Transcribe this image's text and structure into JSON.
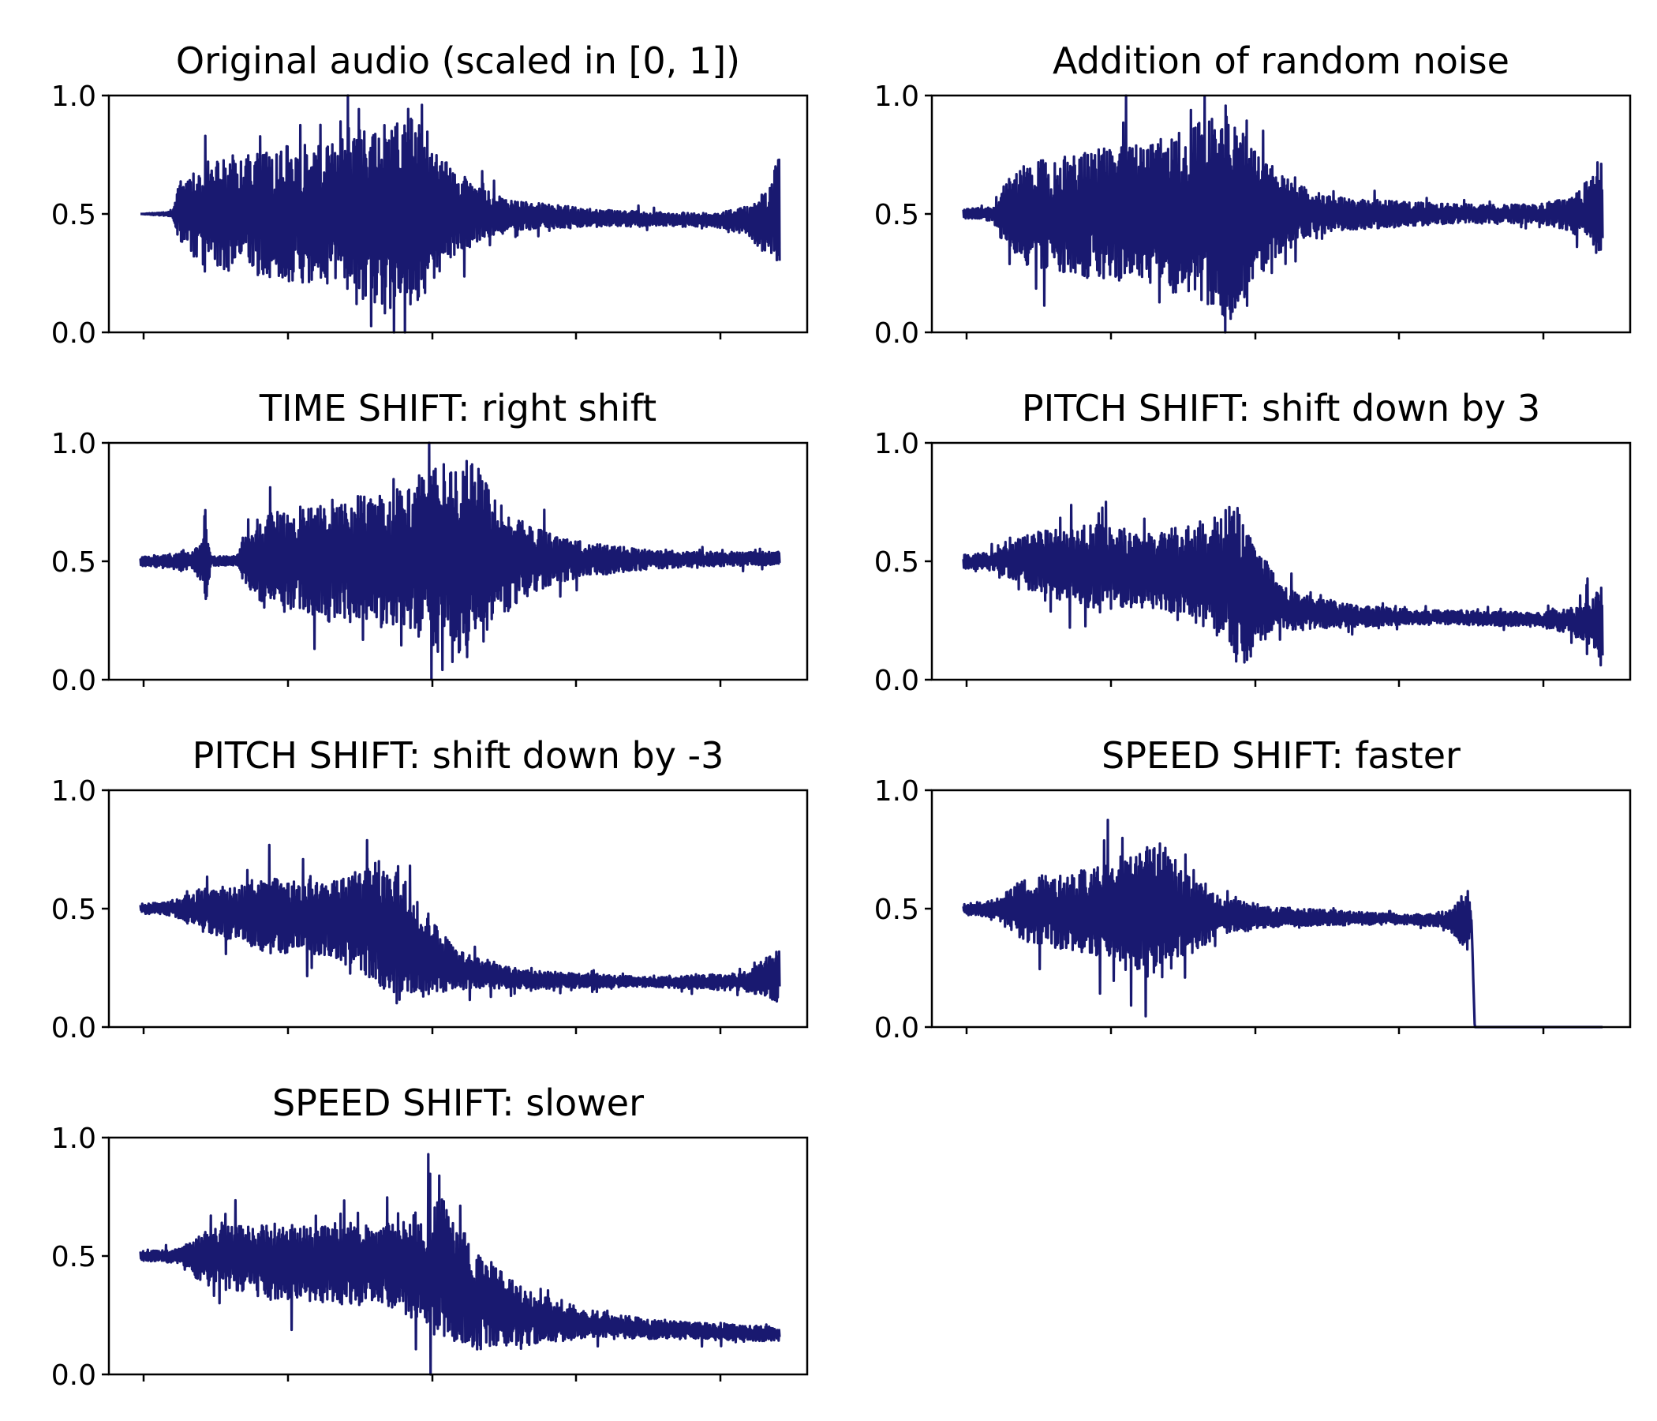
{
  "colors": {
    "waveform": "#191970",
    "axes": "#000000",
    "background": "#ffffff"
  },
  "chart_data": [
    {
      "type": "line",
      "title": "Original audio (scaled in [0, 1])",
      "ylim": [
        0,
        1
      ],
      "yticks": [
        "0.0",
        "0.5",
        "1.0"
      ],
      "xtick_count": 5,
      "xtick_labels_visible": false,
      "envelope": {
        "baseline": [
          [
            0.02,
            0.5
          ],
          [
            0.4,
            0.5
          ],
          [
            0.5,
            0.5
          ],
          [
            0.75,
            0.48
          ],
          [
            0.98,
            0.47
          ],
          [
            0.99,
            0.5
          ]
        ],
        "amplitude": [
          [
            0.0,
            0.0
          ],
          [
            0.05,
            0.01
          ],
          [
            0.06,
            0.12
          ],
          [
            0.1,
            0.22
          ],
          [
            0.2,
            0.28
          ],
          [
            0.3,
            0.3
          ],
          [
            0.38,
            0.4
          ],
          [
            0.42,
            0.45
          ],
          [
            0.45,
            0.3
          ],
          [
            0.5,
            0.16
          ],
          [
            0.55,
            0.09
          ],
          [
            0.6,
            0.06
          ],
          [
            0.7,
            0.04
          ],
          [
            0.8,
            0.03
          ],
          [
            0.9,
            0.03
          ],
          [
            0.95,
            0.06
          ],
          [
            0.98,
            0.15
          ],
          [
            1.0,
            0.25
          ]
        ]
      }
    },
    {
      "type": "line",
      "title": "Addition of random noise",
      "ylim": [
        0,
        1
      ],
      "yticks": [
        "0.0",
        "0.5",
        "1.0"
      ],
      "xtick_count": 5,
      "xtick_labels_visible": false,
      "envelope": {
        "baseline": [
          [
            0.0,
            0.5
          ],
          [
            1.0,
            0.5
          ]
        ],
        "amplitude": [
          [
            0.0,
            0.02
          ],
          [
            0.05,
            0.03
          ],
          [
            0.06,
            0.12
          ],
          [
            0.1,
            0.22
          ],
          [
            0.2,
            0.28
          ],
          [
            0.3,
            0.3
          ],
          [
            0.38,
            0.4
          ],
          [
            0.42,
            0.45
          ],
          [
            0.45,
            0.3
          ],
          [
            0.5,
            0.16
          ],
          [
            0.55,
            0.09
          ],
          [
            0.6,
            0.07
          ],
          [
            0.7,
            0.05
          ],
          [
            0.8,
            0.04
          ],
          [
            0.9,
            0.04
          ],
          [
            0.95,
            0.07
          ],
          [
            0.98,
            0.15
          ],
          [
            1.0,
            0.25
          ]
        ]
      }
    },
    {
      "type": "line",
      "title": "TIME SHIFT: right shift",
      "ylim": [
        0,
        1
      ],
      "yticks": [
        "0.0",
        "0.5",
        "1.0"
      ],
      "xtick_count": 5,
      "xtick_labels_visible": false,
      "envelope": {
        "baseline": [
          [
            0.0,
            0.5
          ],
          [
            1.0,
            0.51
          ]
        ],
        "amplitude": [
          [
            0.0,
            0.02
          ],
          [
            0.08,
            0.04
          ],
          [
            0.1,
            0.1
          ],
          [
            0.1,
            0.26
          ],
          [
            0.11,
            0.02
          ],
          [
            0.15,
            0.02
          ],
          [
            0.16,
            0.1
          ],
          [
            0.2,
            0.2
          ],
          [
            0.3,
            0.26
          ],
          [
            0.4,
            0.3
          ],
          [
            0.48,
            0.42
          ],
          [
            0.52,
            0.45
          ],
          [
            0.55,
            0.28
          ],
          [
            0.6,
            0.16
          ],
          [
            0.65,
            0.1
          ],
          [
            0.7,
            0.07
          ],
          [
            0.8,
            0.04
          ],
          [
            0.9,
            0.03
          ],
          [
            1.0,
            0.03
          ]
        ]
      }
    },
    {
      "type": "line",
      "title": "PITCH SHIFT: shift down by 3",
      "ylim": [
        0,
        1
      ],
      "yticks": [
        "0.0",
        "0.5",
        "1.0"
      ],
      "xtick_count": 5,
      "xtick_labels_visible": false,
      "envelope": {
        "baseline": [
          [
            0.0,
            0.5
          ],
          [
            0.08,
            0.5
          ],
          [
            0.2,
            0.48
          ],
          [
            0.3,
            0.46
          ],
          [
            0.38,
            0.45
          ],
          [
            0.42,
            0.42
          ],
          [
            0.45,
            0.36
          ],
          [
            0.5,
            0.3
          ],
          [
            0.6,
            0.27
          ],
          [
            0.8,
            0.26
          ],
          [
            0.95,
            0.25
          ],
          [
            1.0,
            0.22
          ]
        ],
        "amplitude": [
          [
            0.0,
            0.03
          ],
          [
            0.05,
            0.04
          ],
          [
            0.1,
            0.12
          ],
          [
            0.2,
            0.18
          ],
          [
            0.3,
            0.16
          ],
          [
            0.4,
            0.25
          ],
          [
            0.43,
            0.38
          ],
          [
            0.46,
            0.2
          ],
          [
            0.5,
            0.09
          ],
          [
            0.6,
            0.05
          ],
          [
            0.7,
            0.03
          ],
          [
            0.9,
            0.03
          ],
          [
            0.96,
            0.06
          ],
          [
            1.0,
            0.18
          ]
        ]
      }
    },
    {
      "type": "line",
      "title": "PITCH SHIFT: shift down by -3",
      "ylim": [
        0,
        1
      ],
      "yticks": [
        "0.0",
        "0.5",
        "1.0"
      ],
      "xtick_count": 5,
      "xtick_labels_visible": false,
      "envelope": {
        "baseline": [
          [
            0.0,
            0.5
          ],
          [
            0.08,
            0.5
          ],
          [
            0.2,
            0.47
          ],
          [
            0.3,
            0.46
          ],
          [
            0.38,
            0.44
          ],
          [
            0.42,
            0.36
          ],
          [
            0.45,
            0.3
          ],
          [
            0.5,
            0.24
          ],
          [
            0.6,
            0.2
          ],
          [
            0.8,
            0.19
          ],
          [
            0.95,
            0.19
          ],
          [
            1.0,
            0.22
          ]
        ],
        "amplitude": [
          [
            0.0,
            0.02
          ],
          [
            0.05,
            0.03
          ],
          [
            0.1,
            0.1
          ],
          [
            0.2,
            0.16
          ],
          [
            0.3,
            0.16
          ],
          [
            0.36,
            0.25
          ],
          [
            0.4,
            0.3
          ],
          [
            0.44,
            0.18
          ],
          [
            0.5,
            0.08
          ],
          [
            0.6,
            0.04
          ],
          [
            0.8,
            0.02
          ],
          [
            0.95,
            0.04
          ],
          [
            1.0,
            0.12
          ]
        ]
      }
    },
    {
      "type": "line",
      "title": "SPEED SHIFT: faster",
      "ylim": [
        0,
        1
      ],
      "yticks": [
        "0.0",
        "0.5",
        "1.0"
      ],
      "xtick_count": 5,
      "xtick_labels_visible": false,
      "envelope": {
        "baseline": [
          [
            0.0,
            0.5
          ],
          [
            0.2,
            0.49
          ],
          [
            0.4,
            0.47
          ],
          [
            0.6,
            0.46
          ],
          [
            0.79,
            0.45
          ],
          [
            0.795,
            0.45
          ],
          [
            0.8,
            0.0
          ],
          [
            1.0,
            0.0
          ]
        ],
        "amplitude": [
          [
            0.0,
            0.02
          ],
          [
            0.05,
            0.04
          ],
          [
            0.1,
            0.14
          ],
          [
            0.2,
            0.18
          ],
          [
            0.28,
            0.28
          ],
          [
            0.31,
            0.3
          ],
          [
            0.35,
            0.18
          ],
          [
            0.4,
            0.08
          ],
          [
            0.5,
            0.04
          ],
          [
            0.7,
            0.02
          ],
          [
            0.76,
            0.04
          ],
          [
            0.79,
            0.14
          ],
          [
            0.795,
            0.0
          ],
          [
            1.0,
            0.0
          ]
        ]
      }
    },
    {
      "type": "line",
      "title": "SPEED SHIFT: slower",
      "ylim": [
        0,
        1
      ],
      "yticks": [
        "0.0",
        "0.5",
        "1.0"
      ],
      "xtick_count": 5,
      "xtick_labels_visible": false,
      "envelope": {
        "baseline": [
          [
            0.0,
            0.5
          ],
          [
            0.07,
            0.5
          ],
          [
            0.2,
            0.48
          ],
          [
            0.4,
            0.46
          ],
          [
            0.48,
            0.44
          ],
          [
            0.52,
            0.32
          ],
          [
            0.6,
            0.24
          ],
          [
            0.8,
            0.19
          ],
          [
            1.0,
            0.17
          ]
        ],
        "amplitude": [
          [
            0.0,
            0.02
          ],
          [
            0.06,
            0.03
          ],
          [
            0.1,
            0.12
          ],
          [
            0.2,
            0.16
          ],
          [
            0.3,
            0.17
          ],
          [
            0.4,
            0.18
          ],
          [
            0.47,
            0.3
          ],
          [
            0.52,
            0.22
          ],
          [
            0.6,
            0.12
          ],
          [
            0.7,
            0.06
          ],
          [
            0.8,
            0.04
          ],
          [
            1.0,
            0.03
          ]
        ]
      }
    }
  ]
}
